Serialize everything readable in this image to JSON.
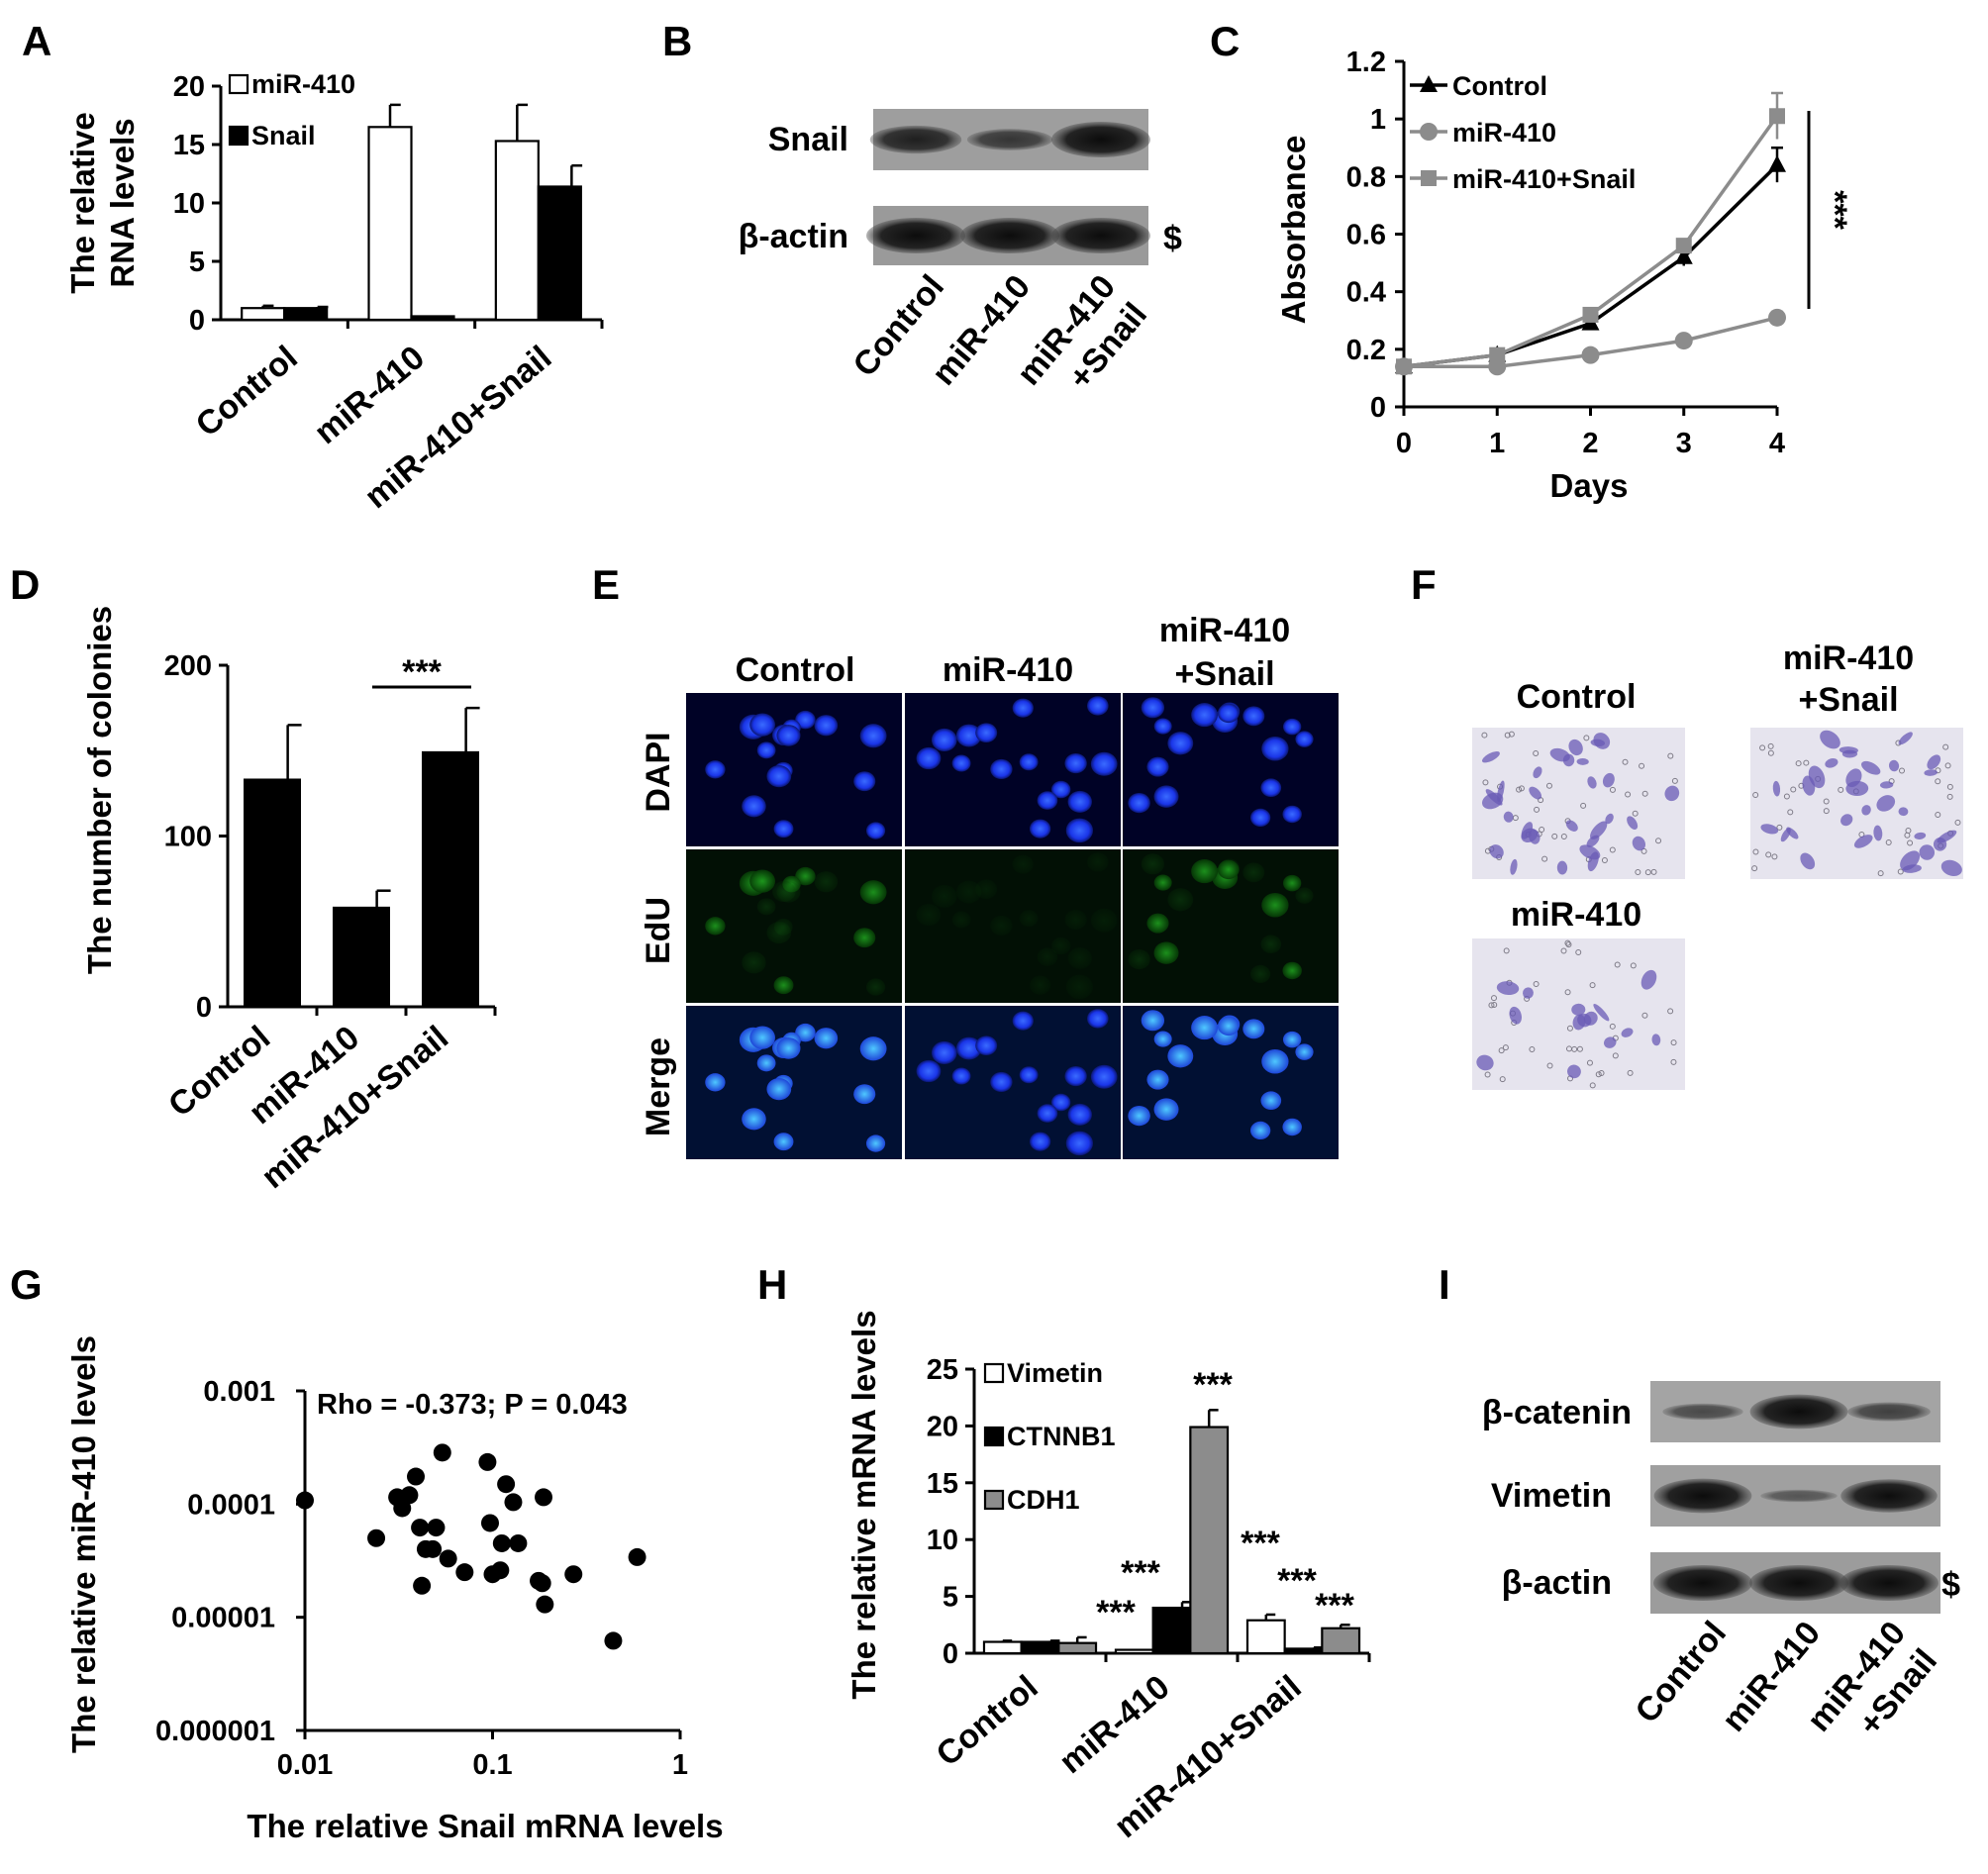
{
  "panels": {
    "A": "A",
    "B": "B",
    "C": "C",
    "D": "D",
    "E": "E",
    "F": "F",
    "G": "G",
    "H": "H",
    "I": "I"
  },
  "chart_data": [
    {
      "panel": "A",
      "type": "bar",
      "categories": [
        "Control",
        "miR-410",
        "miR-410+Snail"
      ],
      "series": [
        {
          "name": "miR-410",
          "values": [
            1.0,
            16.5,
            15.3
          ],
          "errors": [
            0.2,
            1.9,
            3.1
          ],
          "color": "#ffffff"
        },
        {
          "name": "Snail",
          "values": [
            1.0,
            0.3,
            11.4
          ],
          "errors": [
            0.1,
            0.0,
            1.8
          ],
          "color": "#000000"
        }
      ],
      "ylabel_lines": [
        "The relative",
        "RNA levels"
      ],
      "ylim": [
        0,
        20
      ],
      "yticks": [
        "0",
        "5",
        "10",
        "15",
        "20"
      ]
    },
    {
      "panel": "C",
      "type": "line",
      "x": [
        0,
        1,
        2,
        3,
        4
      ],
      "xticks": [
        "0",
        "1",
        "2",
        "3",
        "4"
      ],
      "series": [
        {
          "name": "Control",
          "values": [
            0.14,
            0.18,
            0.29,
            0.52,
            0.84
          ],
          "errors": [
            0.01,
            0.01,
            0.01,
            0.03,
            0.06
          ],
          "color": "#000000",
          "marker": "triangle"
        },
        {
          "name": "miR-410",
          "values": [
            0.14,
            0.14,
            0.18,
            0.23,
            0.31
          ],
          "errors": [
            0.01,
            0.01,
            0.01,
            0.01,
            0.02
          ],
          "color": "#8c8c8c",
          "marker": "circle"
        },
        {
          "name": "miR-410+Snail",
          "values": [
            0.14,
            0.18,
            0.32,
            0.56,
            1.01
          ],
          "errors": [
            0.01,
            0.01,
            0.01,
            0.02,
            0.08
          ],
          "color": "#8c8c8c",
          "marker": "square"
        }
      ],
      "xlabel": "Days",
      "ylabel": "Absorbance",
      "ylim": [
        0,
        1.2
      ],
      "yticks": [
        "0",
        "0.2",
        "0.4",
        "0.6",
        "0.8",
        "1",
        "1.2"
      ],
      "significance": "***"
    },
    {
      "panel": "D",
      "type": "bar",
      "categories": [
        "Control",
        "miR-410",
        "miR-410+Snail"
      ],
      "series": [
        {
          "values": [
            133,
            58,
            149
          ],
          "errors": [
            32,
            10,
            26
          ],
          "color": "#000000"
        }
      ],
      "ylabel": "The number of colonies",
      "ylim": [
        0,
        200
      ],
      "yticks": [
        "0",
        "100",
        "200"
      ],
      "significance": "***"
    },
    {
      "panel": "G",
      "type": "scatter",
      "xscale": "log",
      "yscale": "log",
      "xlim": [
        0.01,
        1
      ],
      "ylim": [
        1e-06,
        0.001
      ],
      "xticks": [
        "0.01",
        "0.1",
        "1"
      ],
      "yticks": [
        "0.000001",
        "0.00001",
        "0.0001",
        "0.001"
      ],
      "points": [
        [
          0.01,
          0.000108
        ],
        [
          0.024,
          5e-05
        ],
        [
          0.031,
          0.000115
        ],
        [
          0.033,
          9.2e-05
        ],
        [
          0.036,
          0.00012
        ],
        [
          0.039,
          0.000175
        ],
        [
          0.041,
          6.2e-05
        ],
        [
          0.042,
          1.9e-05
        ],
        [
          0.044,
          4e-05
        ],
        [
          0.048,
          4e-05
        ],
        [
          0.05,
          6.2e-05
        ],
        [
          0.054,
          0.000285
        ],
        [
          0.058,
          3.3e-05
        ],
        [
          0.071,
          2.5e-05
        ],
        [
          0.094,
          0.000235
        ],
        [
          0.097,
          6.8e-05
        ],
        [
          0.1,
          2.4e-05
        ],
        [
          0.11,
          2.6e-05
        ],
        [
          0.112,
          4.5e-05
        ],
        [
          0.118,
          0.00015
        ],
        [
          0.129,
          0.000104
        ],
        [
          0.137,
          4.5e-05
        ],
        [
          0.176,
          2.1e-05
        ],
        [
          0.184,
          2e-05
        ],
        [
          0.187,
          0.000115
        ],
        [
          0.19,
          1.3e-05
        ],
        [
          0.27,
          2.4e-05
        ],
        [
          0.44,
          6.2e-06
        ],
        [
          0.59,
          3.4e-05
        ]
      ],
      "xlabel": "The relative Snail mRNA levels",
      "ylabel": "The relative miR-410 levels",
      "annotation": "Rho = -0.373; P = 0.043"
    },
    {
      "panel": "H",
      "type": "bar",
      "categories": [
        "Control",
        "miR-410",
        "miR-410+Snail"
      ],
      "series": [
        {
          "name": "Vimetin",
          "values": [
            1.0,
            0.3,
            2.9
          ],
          "errors": [
            0.1,
            0.0,
            0.5
          ],
          "color": "#ffffff"
        },
        {
          "name": "CTNNB1",
          "values": [
            1.0,
            4.0,
            0.4
          ],
          "errors": [
            0.1,
            0.5,
            0.1
          ],
          "color": "#000000"
        },
        {
          "name": "CDH1",
          "values": [
            0.9,
            19.9,
            2.2
          ],
          "errors": [
            0.5,
            1.5,
            0.3
          ],
          "color": "#8c8c8c"
        }
      ],
      "ylabel": "The relative mRNA levels",
      "ylim": [
        0,
        25
      ],
      "yticks": [
        "0",
        "5",
        "10",
        "15",
        "20",
        "25"
      ],
      "significance": "***"
    }
  ],
  "blot_B": {
    "rows": [
      "Snail",
      "β-actin"
    ],
    "lanes": [
      "Control",
      "miR-410",
      "miR-410\n+Snail"
    ],
    "marker": "$",
    "band_intensity": {
      "Snail": [
        0.7,
        0.45,
        1.0
      ],
      "β-actin": [
        1.0,
        1.0,
        1.0
      ]
    }
  },
  "panel_E": {
    "columns": [
      "Control",
      "miR-410",
      "miR-410\n+Snail"
    ],
    "rows": [
      "DAPI",
      "EdU",
      "Merge"
    ]
  },
  "panel_F": {
    "labels": [
      "Control",
      "miR-410\n+Snail",
      "miR-410"
    ]
  },
  "blot_I": {
    "rows": [
      "β-catenin",
      "Vimetin",
      "β-actin"
    ],
    "lanes": [
      "Control",
      "miR-410",
      "miR-410\n+Snail"
    ],
    "marker": "$",
    "band_intensity": {
      "β-catenin": [
        0.25,
        0.95,
        0.35
      ],
      "Vimetin": [
        0.95,
        0.1,
        0.9
      ],
      "β-actin": [
        1.0,
        1.0,
        1.0
      ]
    }
  }
}
